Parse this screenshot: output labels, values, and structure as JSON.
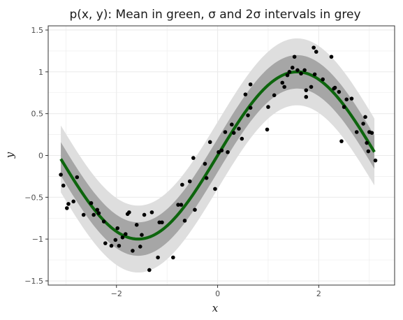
{
  "chart_data": {
    "type": "scatter",
    "title": "p(x, y): Mean in green, σ and 2σ intervals in grey",
    "xlabel": "x",
    "ylabel": "y",
    "xlim": [
      -3.35,
      3.5
    ],
    "ylim": [
      -1.55,
      1.55
    ],
    "x_ticks": [
      -2,
      0,
      2
    ],
    "x_tick_labels": [
      "−2",
      "0",
      "2"
    ],
    "y_ticks": [
      -1.5,
      -1,
      -0.5,
      0,
      0.5,
      1,
      1.5
    ],
    "y_tick_labels": [
      "−1.5",
      "−1",
      "−0.5",
      "0",
      "0.5",
      "1",
      "1.5"
    ],
    "grid": true,
    "mean_function": "sin(x)",
    "sigma": 0.2,
    "mean_x": [
      -3.1,
      -2.9,
      -2.7,
      -2.5,
      -2.3,
      -2.1,
      -1.9,
      -1.7,
      -1.5,
      -1.3,
      -1.1,
      -0.9,
      -0.7,
      -0.5,
      -0.3,
      -0.1,
      0.1,
      0.3,
      0.5,
      0.7,
      0.9,
      1.1,
      1.3,
      1.5,
      1.7,
      1.9,
      2.1,
      2.3,
      2.5,
      2.7,
      2.9,
      3.1
    ],
    "mean_y": [
      -0.12,
      -0.37,
      -0.6,
      -0.76,
      -0.89,
      -0.96,
      -0.98,
      -1.0,
      -1.0,
      -0.96,
      -0.89,
      -0.78,
      -0.64,
      -0.48,
      -0.3,
      -0.1,
      0.1,
      0.3,
      0.48,
      0.64,
      0.78,
      0.89,
      0.96,
      1.0,
      1.0,
      0.98,
      0.92,
      0.81,
      0.67,
      0.5,
      0.3,
      0.04
    ],
    "colors": {
      "mean_line": "#0d650d",
      "points": "#000000",
      "band_1sigma": "#a6a6a6",
      "band_2sigma": "#dedede",
      "panel_border": "#333333",
      "grid": "#ebebeb"
    },
    "points": [
      {
        "x": -3.1,
        "y": -0.23
      },
      {
        "x": -3.05,
        "y": -0.36
      },
      {
        "x": -2.98,
        "y": -0.63
      },
      {
        "x": -2.95,
        "y": -0.58
      },
      {
        "x": -2.85,
        "y": -0.55
      },
      {
        "x": -2.78,
        "y": -0.26
      },
      {
        "x": -2.65,
        "y": -0.71
      },
      {
        "x": -2.5,
        "y": -0.57
      },
      {
        "x": -2.45,
        "y": -0.71
      },
      {
        "x": -2.38,
        "y": -0.65
      },
      {
        "x": -2.35,
        "y": -0.69
      },
      {
        "x": -2.25,
        "y": -0.79
      },
      {
        "x": -2.22,
        "y": -1.05
      },
      {
        "x": -2.1,
        "y": -1.08
      },
      {
        "x": -2.02,
        "y": -1.01
      },
      {
        "x": -1.98,
        "y": -0.87
      },
      {
        "x": -1.95,
        "y": -1.08
      },
      {
        "x": -1.88,
        "y": -0.98
      },
      {
        "x": -1.82,
        "y": -0.94
      },
      {
        "x": -1.78,
        "y": -0.7
      },
      {
        "x": -1.75,
        "y": -0.68
      },
      {
        "x": -1.68,
        "y": -1.14
      },
      {
        "x": -1.6,
        "y": -0.83
      },
      {
        "x": -1.53,
        "y": -1.09
      },
      {
        "x": -1.5,
        "y": -0.95
      },
      {
        "x": -1.45,
        "y": -0.71
      },
      {
        "x": -1.35,
        "y": -1.37
      },
      {
        "x": -1.3,
        "y": -0.68
      },
      {
        "x": -1.18,
        "y": -1.22
      },
      {
        "x": -1.15,
        "y": -0.8
      },
      {
        "x": -1.1,
        "y": -0.8
      },
      {
        "x": -0.88,
        "y": -1.22
      },
      {
        "x": -0.78,
        "y": -0.59
      },
      {
        "x": -0.72,
        "y": -0.59
      },
      {
        "x": -0.7,
        "y": -0.35
      },
      {
        "x": -0.65,
        "y": -0.78
      },
      {
        "x": -0.55,
        "y": -0.31
      },
      {
        "x": -0.48,
        "y": -0.03
      },
      {
        "x": -0.45,
        "y": -0.65
      },
      {
        "x": -0.25,
        "y": -0.1
      },
      {
        "x": -0.22,
        "y": -0.27
      },
      {
        "x": -0.15,
        "y": 0.16
      },
      {
        "x": -0.05,
        "y": -0.4
      },
      {
        "x": 0.02,
        "y": 0.04
      },
      {
        "x": 0.08,
        "y": 0.06
      },
      {
        "x": 0.15,
        "y": 0.28
      },
      {
        "x": 0.2,
        "y": 0.04
      },
      {
        "x": 0.28,
        "y": 0.37
      },
      {
        "x": 0.32,
        "y": 0.27
      },
      {
        "x": 0.42,
        "y": 0.32
      },
      {
        "x": 0.48,
        "y": 0.2
      },
      {
        "x": 0.55,
        "y": 0.73
      },
      {
        "x": 0.6,
        "y": 0.48
      },
      {
        "x": 0.65,
        "y": 0.85
      },
      {
        "x": 0.65,
        "y": 0.57
      },
      {
        "x": 0.98,
        "y": 0.31
      },
      {
        "x": 1.0,
        "y": 0.58
      },
      {
        "x": 1.12,
        "y": 0.72
      },
      {
        "x": 1.28,
        "y": 0.87
      },
      {
        "x": 1.32,
        "y": 0.82
      },
      {
        "x": 1.38,
        "y": 0.96
      },
      {
        "x": 1.42,
        "y": 1.0
      },
      {
        "x": 1.48,
        "y": 1.05
      },
      {
        "x": 1.52,
        "y": 1.18
      },
      {
        "x": 1.58,
        "y": 1.02
      },
      {
        "x": 1.65,
        "y": 0.98
      },
      {
        "x": 1.72,
        "y": 1.02
      },
      {
        "x": 1.75,
        "y": 0.78
      },
      {
        "x": 1.75,
        "y": 0.7
      },
      {
        "x": 1.85,
        "y": 0.82
      },
      {
        "x": 1.9,
        "y": 1.29
      },
      {
        "x": 1.92,
        "y": 0.97
      },
      {
        "x": 1.95,
        "y": 1.24
      },
      {
        "x": 2.08,
        "y": 0.91
      },
      {
        "x": 2.25,
        "y": 1.18
      },
      {
        "x": 2.3,
        "y": 0.8
      },
      {
        "x": 2.32,
        "y": 0.81
      },
      {
        "x": 2.4,
        "y": 0.76
      },
      {
        "x": 2.45,
        "y": 0.17
      },
      {
        "x": 2.5,
        "y": 0.58
      },
      {
        "x": 2.55,
        "y": 0.67
      },
      {
        "x": 2.65,
        "y": 0.68
      },
      {
        "x": 2.75,
        "y": 0.28
      },
      {
        "x": 2.88,
        "y": 0.38
      },
      {
        "x": 2.92,
        "y": 0.46
      },
      {
        "x": 2.95,
        "y": 0.15
      },
      {
        "x": 2.98,
        "y": 0.05
      },
      {
        "x": 3.0,
        "y": 0.28
      },
      {
        "x": 3.05,
        "y": 0.27
      },
      {
        "x": 3.12,
        "y": -0.06
      }
    ]
  }
}
